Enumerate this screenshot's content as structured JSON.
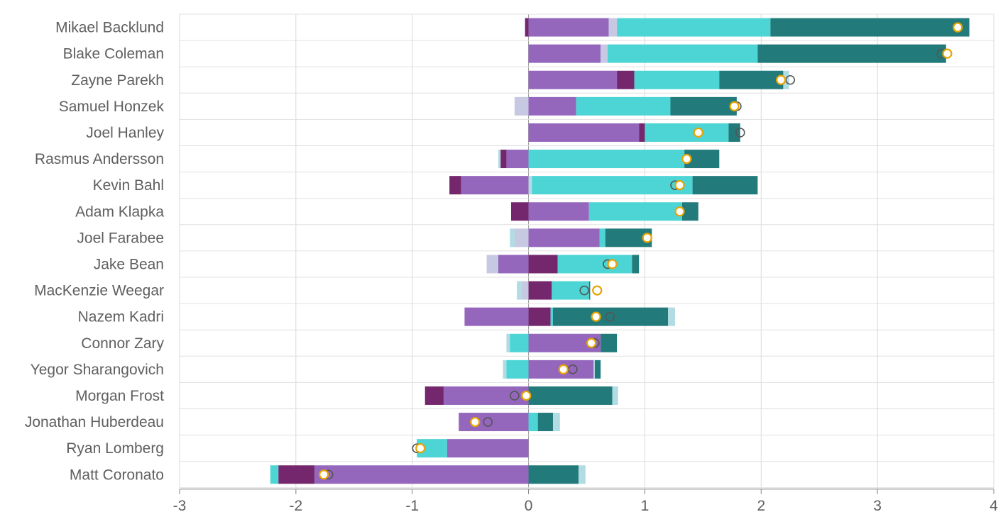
{
  "chart_data": {
    "type": "bar",
    "orientation": "horizontal",
    "stacked": "diverging",
    "title": "",
    "xlabel": "",
    "ylabel": "",
    "xlim": [
      -3,
      4
    ],
    "x_ticks": [
      -3,
      -2,
      -1,
      0,
      1,
      2,
      3,
      4
    ],
    "grid": true,
    "colors": {
      "seg_a": "#c7c9e2",
      "seg_b": "#9467bd",
      "seg_c": "#74276c",
      "seg_d": "#4dd4d4",
      "seg_e": "#b1dce4",
      "seg_f": "#237a7a",
      "marker_total": "#555555",
      "marker_prev": "#e8a400"
    },
    "players": [
      {
        "name": "Mikael Backlund",
        "segments": [
          {
            "c": "seg_c",
            "from": -0.03,
            "to": 0
          },
          {
            "c": "seg_b",
            "from": 0,
            "to": 0.69
          },
          {
            "c": "seg_a",
            "from": 0.69,
            "to": 0.76
          },
          {
            "c": "seg_d",
            "from": 0.76,
            "to": 2.08
          },
          {
            "c": "seg_f",
            "from": 2.08,
            "to": 3.79
          }
        ],
        "total": 3.69,
        "previous": 3.69
      },
      {
        "name": "Blake Coleman",
        "segments": [
          {
            "c": "seg_b",
            "from": 0,
            "to": 0.62
          },
          {
            "c": "seg_a",
            "from": 0.62,
            "to": 0.68
          },
          {
            "c": "seg_d",
            "from": 0.68,
            "to": 1.97
          },
          {
            "c": "seg_f",
            "from": 1.97,
            "to": 3.59
          }
        ],
        "total": 3.55,
        "previous": 3.6
      },
      {
        "name": "Zayne Parekh",
        "segments": [
          {
            "c": "seg_b",
            "from": 0,
            "to": 0.76
          },
          {
            "c": "seg_c",
            "from": 0.76,
            "to": 0.91
          },
          {
            "c": "seg_d",
            "from": 0.91,
            "to": 1.64
          },
          {
            "c": "seg_f",
            "from": 1.64,
            "to": 2.19
          },
          {
            "c": "seg_e",
            "from": 2.19,
            "to": 2.24
          }
        ],
        "total": 2.25,
        "previous": 2.17
      },
      {
        "name": "Samuel Honzek",
        "segments": [
          {
            "c": "seg_a",
            "from": -0.12,
            "to": 0
          },
          {
            "c": "seg_b",
            "from": 0,
            "to": 0.41
          },
          {
            "c": "seg_d",
            "from": 0.41,
            "to": 1.22
          },
          {
            "c": "seg_f",
            "from": 1.22,
            "to": 1.79
          }
        ],
        "total": 1.79,
        "previous": 1.77
      },
      {
        "name": "Joel Hanley",
        "segments": [
          {
            "c": "seg_b",
            "from": 0,
            "to": 0.95
          },
          {
            "c": "seg_c",
            "from": 0.95,
            "to": 1.0
          },
          {
            "c": "seg_d",
            "from": 1.0,
            "to": 1.72
          },
          {
            "c": "seg_f",
            "from": 1.72,
            "to": 1.82
          }
        ],
        "total": 1.82,
        "previous": 1.46
      },
      {
        "name": "Rasmus Andersson",
        "segments": [
          {
            "c": "seg_e",
            "from": -0.26,
            "to": -0.24
          },
          {
            "c": "seg_c",
            "from": -0.24,
            "to": -0.19
          },
          {
            "c": "seg_b",
            "from": -0.19,
            "to": 0
          },
          {
            "c": "seg_d",
            "from": 0,
            "to": 1.34
          },
          {
            "c": "seg_f",
            "from": 1.34,
            "to": 1.64
          }
        ],
        "total": 1.36,
        "previous": 1.36
      },
      {
        "name": "Kevin Bahl",
        "segments": [
          {
            "c": "seg_c",
            "from": -0.68,
            "to": -0.58
          },
          {
            "c": "seg_b",
            "from": -0.58,
            "to": 0
          },
          {
            "c": "seg_e",
            "from": 0,
            "to": 0.03
          },
          {
            "c": "seg_d",
            "from": 0.03,
            "to": 1.41
          },
          {
            "c": "seg_f",
            "from": 1.41,
            "to": 1.97
          }
        ],
        "total": 1.26,
        "previous": 1.3
      },
      {
        "name": "Adam Klapka",
        "segments": [
          {
            "c": "seg_c",
            "from": -0.15,
            "to": 0
          },
          {
            "c": "seg_b",
            "from": 0,
            "to": 0.52
          },
          {
            "c": "seg_d",
            "from": 0.52,
            "to": 1.32
          },
          {
            "c": "seg_f",
            "from": 1.32,
            "to": 1.46
          }
        ],
        "total": 1.3,
        "previous": 1.3
      },
      {
        "name": "Joel Farabee",
        "segments": [
          {
            "c": "seg_e",
            "from": -0.16,
            "to": -0.12
          },
          {
            "c": "seg_a",
            "from": -0.12,
            "to": 0
          },
          {
            "c": "seg_b",
            "from": 0,
            "to": 0.61
          },
          {
            "c": "seg_d",
            "from": 0.61,
            "to": 0.66
          },
          {
            "c": "seg_f",
            "from": 0.66,
            "to": 1.06
          }
        ],
        "total": 1.02,
        "previous": 1.02
      },
      {
        "name": "Jake Bean",
        "segments": [
          {
            "c": "seg_a",
            "from": -0.36,
            "to": -0.26
          },
          {
            "c": "seg_b",
            "from": -0.26,
            "to": 0
          },
          {
            "c": "seg_c",
            "from": 0,
            "to": 0.25
          },
          {
            "c": "seg_d",
            "from": 0.25,
            "to": 0.89
          },
          {
            "c": "seg_f",
            "from": 0.89,
            "to": 0.95
          }
        ],
        "total": 0.68,
        "previous": 0.72
      },
      {
        "name": "MacKenzie Weegar",
        "segments": [
          {
            "c": "seg_e",
            "from": -0.1,
            "to": -0.06
          },
          {
            "c": "seg_a",
            "from": -0.06,
            "to": 0
          },
          {
            "c": "seg_c",
            "from": 0,
            "to": 0.2
          },
          {
            "c": "seg_d",
            "from": 0.2,
            "to": 0.52
          },
          {
            "c": "seg_f",
            "from": 0.52,
            "to": 0.53
          }
        ],
        "total": 0.48,
        "previous": 0.59
      },
      {
        "name": "Nazem Kadri",
        "segments": [
          {
            "c": "seg_b",
            "from": -0.55,
            "to": 0
          },
          {
            "c": "seg_c",
            "from": 0,
            "to": 0.19
          },
          {
            "c": "seg_d",
            "from": 0.19,
            "to": 0.21
          },
          {
            "c": "seg_f",
            "from": 0.21,
            "to": 1.2
          },
          {
            "c": "seg_e",
            "from": 1.2,
            "to": 1.26
          }
        ],
        "total": 0.7,
        "previous": 0.58
      },
      {
        "name": "Connor Zary",
        "segments": [
          {
            "c": "seg_e",
            "from": -0.19,
            "to": -0.16
          },
          {
            "c": "seg_d",
            "from": -0.16,
            "to": 0
          },
          {
            "c": "seg_b",
            "from": 0,
            "to": 0.62
          },
          {
            "c": "seg_f",
            "from": 0.62,
            "to": 0.76
          }
        ],
        "total": 0.57,
        "previous": 0.54
      },
      {
        "name": "Yegor Sharangovich",
        "segments": [
          {
            "c": "seg_e",
            "from": -0.22,
            "to": -0.19
          },
          {
            "c": "seg_d",
            "from": -0.19,
            "to": 0
          },
          {
            "c": "seg_b",
            "from": 0,
            "to": 0.56
          },
          {
            "c": "seg_e",
            "from": 0.56,
            "to": 0.57
          },
          {
            "c": "seg_f",
            "from": 0.57,
            "to": 0.62
          }
        ],
        "total": 0.38,
        "previous": 0.3
      },
      {
        "name": "Morgan Frost",
        "segments": [
          {
            "c": "seg_c",
            "from": -0.89,
            "to": -0.73
          },
          {
            "c": "seg_b",
            "from": -0.73,
            "to": 0
          },
          {
            "c": "seg_f",
            "from": 0,
            "to": 0.72
          },
          {
            "c": "seg_e",
            "from": 0.72,
            "to": 0.77
          }
        ],
        "total": -0.12,
        "previous": -0.02
      },
      {
        "name": "Jonathan Huberdeau",
        "segments": [
          {
            "c": "seg_b",
            "from": -0.6,
            "to": 0
          },
          {
            "c": "seg_d",
            "from": 0,
            "to": 0.08
          },
          {
            "c": "seg_f",
            "from": 0.08,
            "to": 0.21
          },
          {
            "c": "seg_e",
            "from": 0.21,
            "to": 0.27
          }
        ],
        "total": -0.35,
        "previous": -0.46
      },
      {
        "name": "Ryan Lomberg",
        "segments": [
          {
            "c": "seg_d",
            "from": -0.96,
            "to": -0.7
          },
          {
            "c": "seg_b",
            "from": -0.7,
            "to": 0
          }
        ],
        "total": -0.96,
        "previous": -0.93
      },
      {
        "name": "Matt Coronato",
        "segments": [
          {
            "c": "seg_d",
            "from": -2.22,
            "to": -2.15
          },
          {
            "c": "seg_c",
            "from": -2.15,
            "to": -1.84
          },
          {
            "c": "seg_b",
            "from": -1.84,
            "to": 0
          },
          {
            "c": "seg_f",
            "from": 0,
            "to": 0.43
          },
          {
            "c": "seg_e",
            "from": 0.43,
            "to": 0.49
          }
        ],
        "total": -1.72,
        "previous": -1.76
      }
    ]
  }
}
